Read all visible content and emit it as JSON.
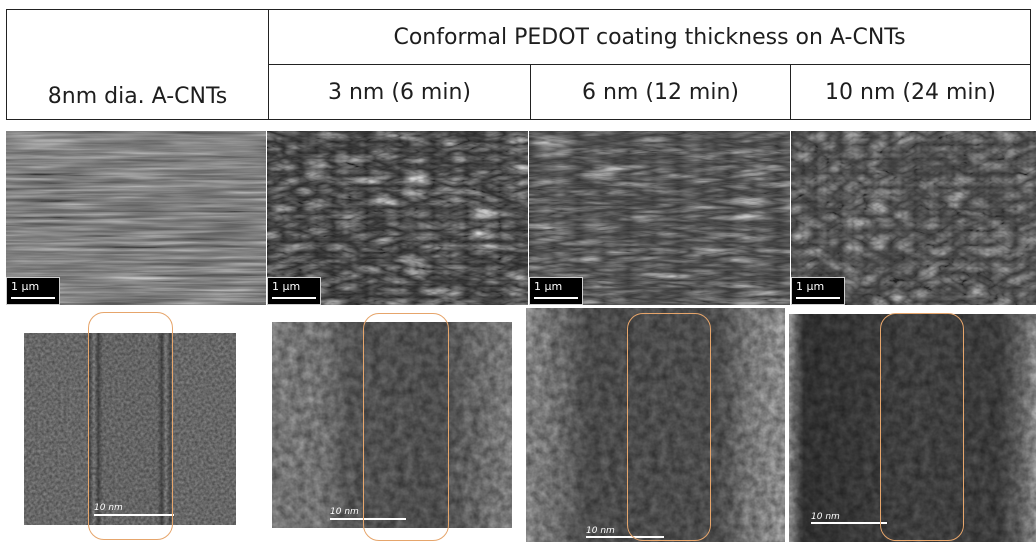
{
  "header": {
    "col1_label": "8nm dia. A-CNTs",
    "group_label": "Conformal PEDOT coating thickness on A-CNTs",
    "cols": [
      "3 nm (6 min)",
      "6 nm (12 min)",
      "10 nm (24 min)"
    ]
  },
  "sem_scale_label": "1 μm",
  "tem_scale_label": "10 nm",
  "colors": {
    "roi_outline": "#e6a56b",
    "grid_lines": "#222222"
  }
}
